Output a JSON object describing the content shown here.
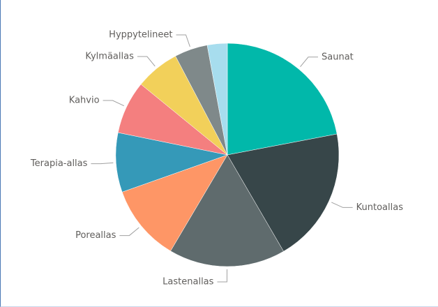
{
  "chart_data": {
    "type": "pie",
    "categories": [
      "Saunat",
      "Kuntoallas",
      "Lastenallas",
      "Poreallas",
      "Terapia-allas",
      "Kahvio",
      "Kylmäallas",
      "Hyppytelineet",
      null
    ],
    "values": [
      22,
      19.6,
      16.9,
      11.1,
      8.6,
      7.7,
      6.4,
      4.8,
      2.9
    ],
    "colors": [
      "#01B8AA",
      "#374649",
      "#5F6B6D",
      "#FE9666",
      "#3599B8",
      "#F47F7F",
      "#F2D05A",
      "#7F898A",
      "#A7DDEE"
    ]
  }
}
